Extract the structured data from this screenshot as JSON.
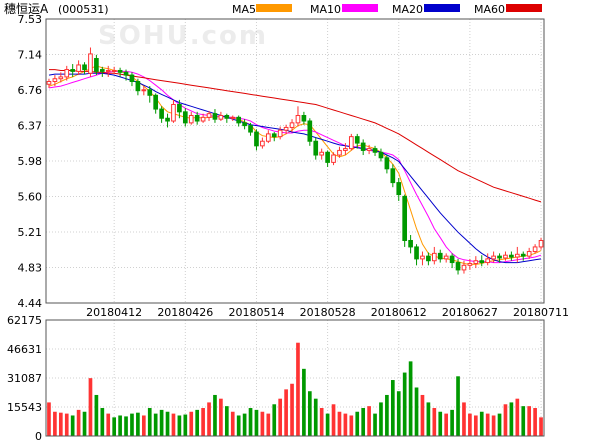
{
  "header": {
    "stock_name": "穗恒运A",
    "stock_code": "(000531)",
    "legend": [
      {
        "label": "MA5",
        "color": "#ff9900"
      },
      {
        "label": "MA10",
        "color": "#ff00ff"
      },
      {
        "label": "MA20",
        "color": "#0000cc"
      },
      {
        "label": "MA60",
        "color": "#dd0000"
      }
    ]
  },
  "watermark": "SOHU.com",
  "colors": {
    "up": "#ff3333",
    "down": "#009900",
    "grid": "#d0d0d0",
    "frame": "#555555"
  },
  "chart_data": [
    {
      "type": "candlestick",
      "title": "穗恒运A (000531)",
      "ylim": [
        4.44,
        7.53
      ],
      "y_ticks": [
        "7.53",
        "7.14",
        "6.76",
        "6.37",
        "5.98",
        "5.60",
        "5.21",
        "4.83",
        "4.44"
      ],
      "x_tick_labels": [
        {
          "label": "20180412",
          "index": 11
        },
        {
          "label": "20180426",
          "index": 23
        },
        {
          "label": "20180514",
          "index": 35
        },
        {
          "label": "20180528",
          "index": 47
        },
        {
          "label": "20180612",
          "index": 59
        },
        {
          "label": "20180627",
          "index": 71
        },
        {
          "label": "20180711",
          "index": 83
        }
      ],
      "grid": true,
      "ohlc": [
        [
          6.82,
          6.85,
          6.78,
          6.88
        ],
        [
          6.85,
          6.88,
          6.8,
          6.92
        ],
        [
          6.88,
          6.9,
          6.84,
          6.95
        ],
        [
          6.9,
          6.98,
          6.86,
          7.02
        ],
        [
          6.98,
          6.96,
          6.9,
          7.04
        ],
        [
          6.96,
          7.03,
          6.92,
          7.08
        ],
        [
          7.03,
          6.98,
          6.93,
          7.06
        ],
        [
          6.94,
          7.15,
          6.9,
          7.22
        ],
        [
          7.1,
          6.96,
          6.92,
          7.14
        ],
        [
          6.98,
          6.96,
          6.9,
          7.01
        ],
        [
          6.96,
          6.97,
          6.9,
          7.02
        ],
        [
          6.97,
          6.97,
          6.93,
          7.01
        ],
        [
          6.97,
          6.95,
          6.9,
          7.0
        ],
        [
          6.95,
          6.92,
          6.86,
          6.98
        ],
        [
          6.92,
          6.85,
          6.8,
          6.95
        ],
        [
          6.85,
          6.75,
          6.7,
          6.88
        ],
        [
          6.75,
          6.76,
          6.7,
          6.8
        ],
        [
          6.76,
          6.7,
          6.62,
          6.8
        ],
        [
          6.7,
          6.55,
          6.5,
          6.72
        ],
        [
          6.55,
          6.45,
          6.4,
          6.58
        ],
        [
          6.45,
          6.42,
          6.35,
          6.5
        ],
        [
          6.42,
          6.6,
          6.4,
          6.65
        ],
        [
          6.6,
          6.52,
          6.45,
          6.65
        ],
        [
          6.52,
          6.4,
          6.36,
          6.56
        ],
        [
          6.4,
          6.48,
          6.38,
          6.52
        ],
        [
          6.48,
          6.42,
          6.38,
          6.52
        ],
        [
          6.42,
          6.46,
          6.4,
          6.5
        ],
        [
          6.46,
          6.5,
          6.42,
          6.53
        ],
        [
          6.5,
          6.44,
          6.4,
          6.55
        ],
        [
          6.44,
          6.48,
          6.42,
          6.52
        ],
        [
          6.48,
          6.45,
          6.4,
          6.5
        ],
        [
          6.45,
          6.46,
          6.42,
          6.48
        ],
        [
          6.46,
          6.4,
          6.36,
          6.48
        ],
        [
          6.4,
          6.37,
          6.33,
          6.44
        ],
        [
          6.37,
          6.3,
          6.26,
          6.4
        ],
        [
          6.3,
          6.15,
          6.1,
          6.33
        ],
        [
          6.15,
          6.2,
          6.12,
          6.24
        ],
        [
          6.2,
          6.28,
          6.18,
          6.32
        ],
        [
          6.28,
          6.25,
          6.2,
          6.3
        ],
        [
          6.25,
          6.32,
          6.22,
          6.36
        ],
        [
          6.32,
          6.35,
          6.28,
          6.38
        ],
        [
          6.35,
          6.4,
          6.3,
          6.44
        ],
        [
          6.4,
          6.48,
          6.36,
          6.58
        ],
        [
          6.48,
          6.42,
          6.38,
          6.52
        ],
        [
          6.42,
          6.2,
          6.15,
          6.45
        ],
        [
          6.2,
          6.05,
          6.0,
          6.24
        ],
        [
          6.05,
          6.08,
          6.0,
          6.12
        ],
        [
          6.08,
          5.97,
          5.92,
          6.1
        ],
        [
          5.97,
          6.05,
          5.94,
          6.08
        ],
        [
          6.05,
          6.1,
          6.02,
          6.14
        ],
        [
          6.1,
          6.12,
          6.05,
          6.18
        ],
        [
          6.12,
          6.25,
          6.1,
          6.28
        ],
        [
          6.25,
          6.18,
          6.12,
          6.28
        ],
        [
          6.18,
          6.1,
          6.05,
          6.22
        ],
        [
          6.1,
          6.12,
          6.06,
          6.16
        ],
        [
          6.12,
          6.08,
          6.04,
          6.15
        ],
        [
          6.08,
          6.02,
          5.98,
          6.12
        ],
        [
          6.02,
          5.9,
          5.85,
          6.05
        ],
        [
          5.9,
          5.75,
          5.7,
          5.95
        ],
        [
          5.75,
          5.62,
          5.55,
          5.8
        ],
        [
          5.6,
          5.12,
          5.05,
          5.62
        ],
        [
          5.12,
          5.05,
          4.98,
          5.18
        ],
        [
          5.05,
          4.92,
          4.85,
          5.08
        ],
        [
          4.92,
          4.95,
          4.85,
          5.0
        ],
        [
          4.95,
          4.9,
          4.85,
          4.99
        ],
        [
          4.9,
          4.98,
          4.86,
          5.05
        ],
        [
          4.98,
          4.92,
          4.88,
          5.02
        ],
        [
          4.92,
          4.95,
          4.88,
          4.98
        ],
        [
          4.95,
          4.88,
          4.82,
          4.98
        ],
        [
          4.88,
          4.8,
          4.75,
          4.92
        ],
        [
          4.8,
          4.85,
          4.76,
          4.9
        ],
        [
          4.85,
          4.87,
          4.8,
          4.92
        ],
        [
          4.87,
          4.9,
          4.82,
          4.95
        ],
        [
          4.9,
          4.88,
          4.84,
          4.96
        ],
        [
          4.88,
          4.92,
          4.85,
          4.98
        ],
        [
          4.92,
          4.95,
          4.88,
          5.0
        ],
        [
          4.95,
          4.93,
          4.88,
          4.98
        ],
        [
          4.93,
          4.96,
          4.9,
          5.0
        ],
        [
          4.96,
          4.94,
          4.9,
          5.0
        ],
        [
          4.94,
          4.97,
          4.88,
          5.05
        ],
        [
          4.97,
          4.95,
          4.9,
          5.0
        ],
        [
          4.95,
          5.0,
          4.92,
          5.04
        ],
        [
          5.0,
          5.05,
          4.98,
          5.08
        ],
        [
          5.05,
          5.12,
          5.02,
          5.15
        ]
      ],
      "ma": {
        "MA5": [
          6.8,
          6.82,
          6.85,
          6.88,
          6.9,
          6.93,
          6.96,
          6.99,
          7.02,
          7.0,
          6.99,
          6.97,
          6.96,
          6.94,
          6.9,
          6.85,
          6.8,
          6.74,
          6.67,
          6.58,
          6.52,
          6.5,
          6.48,
          6.46,
          6.45,
          6.46,
          6.45,
          6.46,
          6.46,
          6.47,
          6.46,
          6.45,
          6.44,
          6.41,
          6.38,
          6.3,
          6.26,
          6.25,
          6.24,
          6.25,
          6.28,
          6.32,
          6.37,
          6.39,
          6.38,
          6.3,
          6.22,
          6.14,
          6.06,
          6.03,
          6.05,
          6.1,
          6.15,
          6.16,
          6.14,
          6.12,
          6.08,
          6.02,
          5.95,
          5.85,
          5.65,
          5.45,
          5.25,
          5.08,
          4.98,
          4.95,
          4.93,
          4.92,
          4.91,
          4.89,
          4.87,
          4.86,
          4.86,
          4.87,
          4.89,
          4.9,
          4.91,
          4.92,
          4.93,
          4.94,
          4.95,
          4.96,
          4.98,
          5.01
        ],
        "MA10": [
          6.78,
          6.79,
          6.8,
          6.82,
          6.84,
          6.86,
          6.88,
          6.9,
          6.92,
          6.94,
          6.95,
          6.96,
          6.96,
          6.96,
          6.95,
          6.93,
          6.9,
          6.86,
          6.81,
          6.76,
          6.7,
          6.65,
          6.6,
          6.56,
          6.53,
          6.5,
          6.49,
          6.48,
          6.47,
          6.47,
          6.46,
          6.46,
          6.45,
          6.44,
          6.42,
          6.38,
          6.35,
          6.33,
          6.31,
          6.3,
          6.29,
          6.29,
          6.31,
          6.32,
          6.32,
          6.3,
          6.27,
          6.24,
          6.21,
          6.18,
          6.15,
          6.14,
          6.14,
          6.12,
          6.1,
          6.09,
          6.08,
          6.07,
          6.05,
          6.0,
          5.88,
          5.75,
          5.62,
          5.5,
          5.38,
          5.25,
          5.15,
          5.05,
          4.98,
          4.93,
          4.91,
          4.9,
          4.89,
          4.89,
          4.89,
          4.88,
          4.88,
          4.89,
          4.9,
          4.91,
          4.92,
          4.93,
          4.94,
          4.96
        ],
        "MA20": [
          6.92,
          6.93,
          6.93,
          6.93,
          6.93,
          6.93,
          6.93,
          6.94,
          6.94,
          6.94,
          6.93,
          6.92,
          6.9,
          6.88,
          6.86,
          6.84,
          6.81,
          6.78,
          6.74,
          6.71,
          6.68,
          6.65,
          6.62,
          6.6,
          6.58,
          6.56,
          6.54,
          6.52,
          6.5,
          6.48,
          6.46,
          6.44,
          6.42,
          6.4,
          6.38,
          6.37,
          6.36,
          6.35,
          6.34,
          6.33,
          6.32,
          6.3,
          6.29,
          6.28,
          6.26,
          6.24,
          6.22,
          6.2,
          6.18,
          6.16,
          6.15,
          6.14,
          6.13,
          6.12,
          6.11,
          6.1,
          6.08,
          6.05,
          6.02,
          5.98,
          5.9,
          5.82,
          5.74,
          5.66,
          5.58,
          5.5,
          5.42,
          5.35,
          5.28,
          5.21,
          5.15,
          5.09,
          5.03,
          4.98,
          4.94,
          4.91,
          4.89,
          4.88,
          4.88,
          4.88,
          4.89,
          4.9,
          4.91,
          4.92
        ],
        "MA60": [
          6.98,
          6.98,
          6.97,
          6.97,
          6.97,
          6.96,
          6.96,
          6.96,
          6.95,
          6.95,
          6.94,
          6.94,
          6.93,
          6.92,
          6.91,
          6.9,
          6.89,
          6.88,
          6.87,
          6.86,
          6.85,
          6.84,
          6.83,
          6.82,
          6.81,
          6.8,
          6.79,
          6.78,
          6.77,
          6.76,
          6.75,
          6.74,
          6.73,
          6.72,
          6.71,
          6.7,
          6.69,
          6.68,
          6.67,
          6.66,
          6.65,
          6.64,
          6.63,
          6.62,
          6.61,
          6.6,
          6.58,
          6.56,
          6.54,
          6.52,
          6.5,
          6.48,
          6.46,
          6.44,
          6.42,
          6.4,
          6.37,
          6.34,
          6.31,
          6.28,
          6.24,
          6.2,
          6.16,
          6.12,
          6.08,
          6.04,
          6.0,
          5.96,
          5.92,
          5.88,
          5.85,
          5.82,
          5.79,
          5.76,
          5.73,
          5.7,
          5.68,
          5.66,
          5.64,
          5.62,
          5.6,
          5.58,
          5.56,
          5.54
        ]
      }
    },
    {
      "type": "bar",
      "title": "",
      "ylim": [
        0,
        62175
      ],
      "y_ticks": [
        "62175",
        "46631",
        "31087",
        "15543",
        "0"
      ],
      "grid": true,
      "values": [
        18000,
        13000,
        12500,
        12000,
        11000,
        14000,
        13000,
        31000,
        22000,
        15000,
        12000,
        10000,
        11000,
        10500,
        12000,
        12500,
        11000,
        15000,
        12000,
        14000,
        13000,
        12000,
        11000,
        11500,
        13000,
        14000,
        15000,
        18000,
        22000,
        20000,
        16000,
        13000,
        11000,
        12000,
        15000,
        14000,
        13000,
        12000,
        17000,
        20000,
        25000,
        28000,
        50000,
        36000,
        24000,
        20000,
        15000,
        12000,
        17000,
        13000,
        12000,
        11000,
        13000,
        15000,
        16000,
        12000,
        18000,
        22000,
        30000,
        24000,
        34000,
        40000,
        26000,
        22000,
        18000,
        15000,
        13000,
        12000,
        14000,
        32000,
        18000,
        12000,
        11000,
        13000,
        12000,
        11000,
        12000,
        17000,
        18000,
        20000,
        16000,
        16000,
        15000,
        10000
      ],
      "up": [
        true,
        true,
        true,
        true,
        false,
        true,
        false,
        true,
        false,
        false,
        true,
        false,
        false,
        false,
        false,
        false,
        true,
        false,
        false,
        false,
        false,
        true,
        false,
        false,
        true,
        false,
        true,
        true,
        false,
        true,
        false,
        true,
        false,
        false,
        false,
        false,
        true,
        true,
        false,
        true,
        true,
        true,
        true,
        false,
        false,
        false,
        true,
        false,
        true,
        true,
        true,
        true,
        false,
        false,
        true,
        false,
        false,
        false,
        false,
        false,
        false,
        false,
        false,
        true,
        false,
        true,
        false,
        true,
        false,
        false,
        true,
        true,
        true,
        false,
        true,
        true,
        false,
        true,
        false,
        true,
        false,
        true,
        true,
        true
      ]
    }
  ]
}
